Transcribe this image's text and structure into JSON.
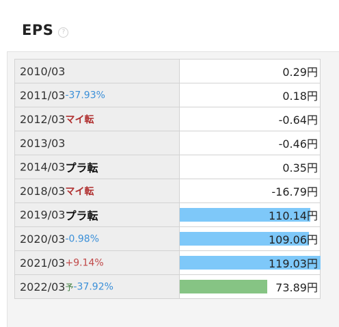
{
  "title": "EPS",
  "help_icon": "?",
  "unit": "円",
  "bar_max_value": 119.03,
  "colors": {
    "bar_actual": "#7ec8f9",
    "bar_forecast": "#86c484",
    "pct_negative": "#3a8fd8",
    "pct_positive": "#c04848",
    "tag_turn_negative": "#b03030"
  },
  "rows": [
    {
      "period": "2010/03",
      "tag": "",
      "tag_type": "",
      "pct": "",
      "pct_type": "",
      "forecast": "",
      "value": 0.29,
      "value_text": "0.29",
      "unit": "円",
      "bar": ""
    },
    {
      "period": "2011/03",
      "tag": "",
      "tag_type": "",
      "pct": "-37.93%",
      "pct_type": "neg",
      "forecast": "",
      "value": 0.18,
      "value_text": "0.18",
      "unit": "円",
      "bar": ""
    },
    {
      "period": "2012/03",
      "tag": "マイ転",
      "tag_type": "down",
      "pct": "",
      "pct_type": "",
      "forecast": "",
      "value": -0.64,
      "value_text": "-0.64",
      "unit": "円",
      "bar": ""
    },
    {
      "period": "2013/03",
      "tag": "",
      "tag_type": "",
      "pct": "",
      "pct_type": "",
      "forecast": "",
      "value": -0.46,
      "value_text": "-0.46",
      "unit": "円",
      "bar": ""
    },
    {
      "period": "2014/03",
      "tag": "プラ転",
      "tag_type": "up",
      "pct": "",
      "pct_type": "",
      "forecast": "",
      "value": 0.35,
      "value_text": "0.35",
      "unit": "円",
      "bar": ""
    },
    {
      "period": "2018/03",
      "tag": "マイ転",
      "tag_type": "down",
      "pct": "",
      "pct_type": "",
      "forecast": "",
      "value": -16.79,
      "value_text": "-16.79",
      "unit": "円",
      "bar": ""
    },
    {
      "period": "2019/03",
      "tag": "プラ転",
      "tag_type": "up",
      "pct": "",
      "pct_type": "",
      "forecast": "",
      "value": 110.14,
      "value_text": "110.14",
      "unit": "円",
      "bar": "actual"
    },
    {
      "period": "2020/03",
      "tag": "",
      "tag_type": "",
      "pct": "-0.98%",
      "pct_type": "neg",
      "forecast": "",
      "value": 109.06,
      "value_text": "109.06",
      "unit": "円",
      "bar": "actual"
    },
    {
      "period": "2021/03",
      "tag": "",
      "tag_type": "",
      "pct": "+9.14%",
      "pct_type": "pos",
      "forecast": "",
      "value": 119.03,
      "value_text": "119.03",
      "unit": "円",
      "bar": "actual"
    },
    {
      "period": "2022/03",
      "tag": "",
      "tag_type": "",
      "pct": "-37.92%",
      "pct_type": "neg",
      "forecast": "予",
      "value": 73.89,
      "value_text": "73.89",
      "unit": "円",
      "bar": "forecast"
    }
  ]
}
